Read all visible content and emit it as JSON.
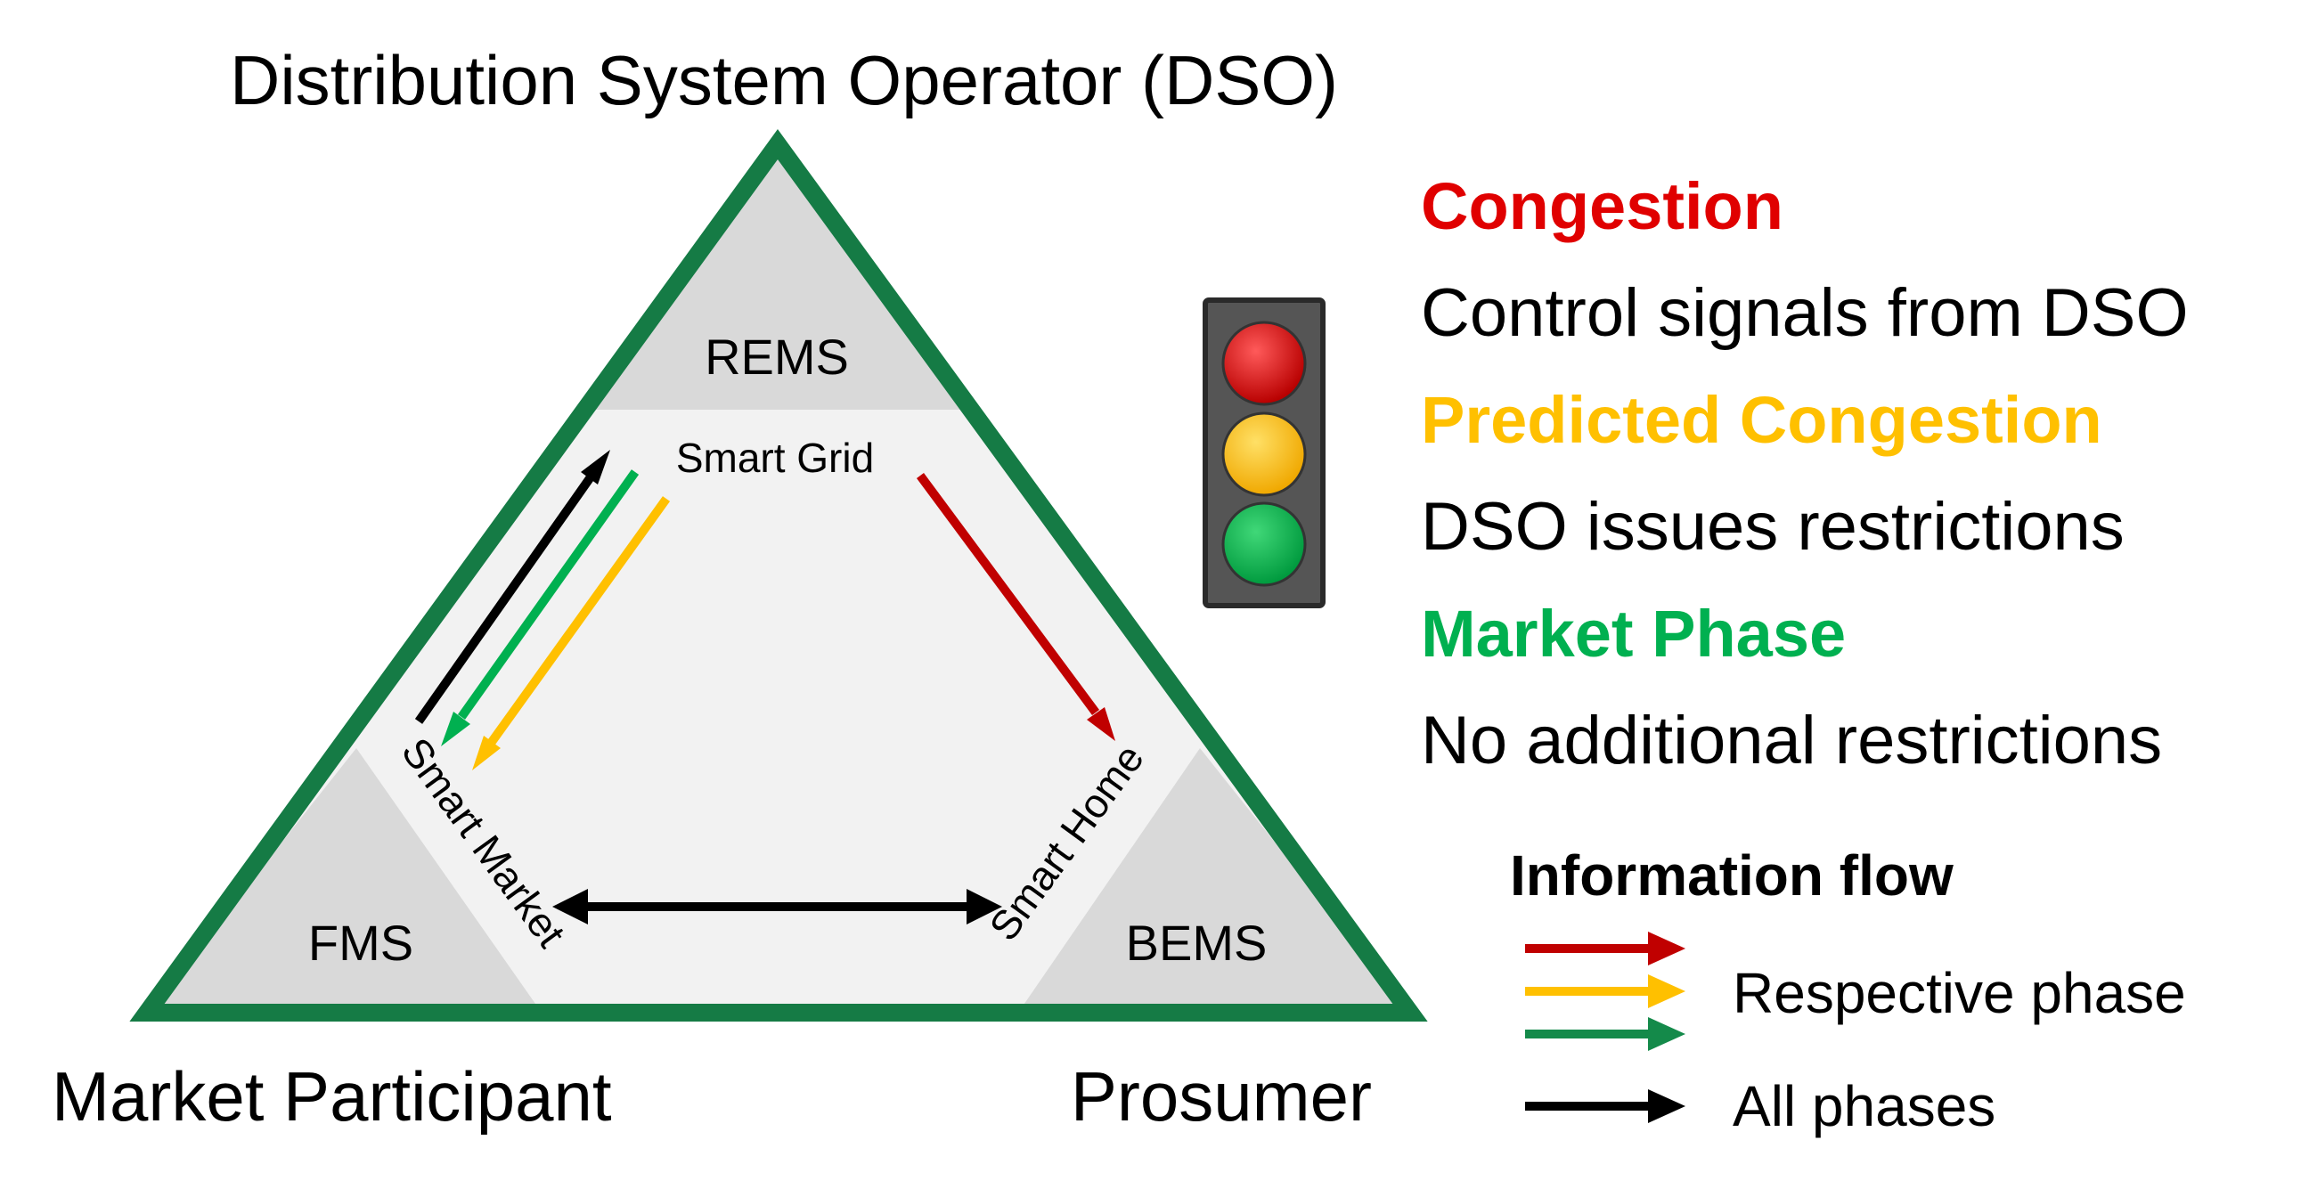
{
  "title": "Distribution System Operator (DSO)",
  "corners": {
    "left": "Market Participant",
    "right": "Prosumer"
  },
  "zones": {
    "top": "REMS",
    "left": "FMS",
    "right": "BEMS"
  },
  "edges": {
    "top": "Smart Grid",
    "left": "Smart Market",
    "right": "Smart Home"
  },
  "phases": [
    {
      "title": "Congestion",
      "description": "Control signals from DSO",
      "color": "#e00000"
    },
    {
      "title": "Predicted Congestion",
      "description": "DSO issues restrictions",
      "color": "#ffc000"
    },
    {
      "title": "Market Phase",
      "description": "No additional restrictions",
      "color": "#00b050"
    }
  ],
  "legend": {
    "title": "Information flow",
    "respective_label": "Respective phase",
    "all_label": "All phases"
  },
  "colors": {
    "triangle_border": "#157b45",
    "zone_fill": "#d9d9d9",
    "inner_fill": "#f2f2f2",
    "arrow_red": "#c00000",
    "arrow_yellow": "#ffc000",
    "arrow_green": "#00b050",
    "legend_green": "#148a4a",
    "arrow_black": "#000000",
    "light_red": "#e00000",
    "light_yellow": "#ffc000",
    "light_green": "#00b050",
    "traffic_light_body": "#555555"
  }
}
